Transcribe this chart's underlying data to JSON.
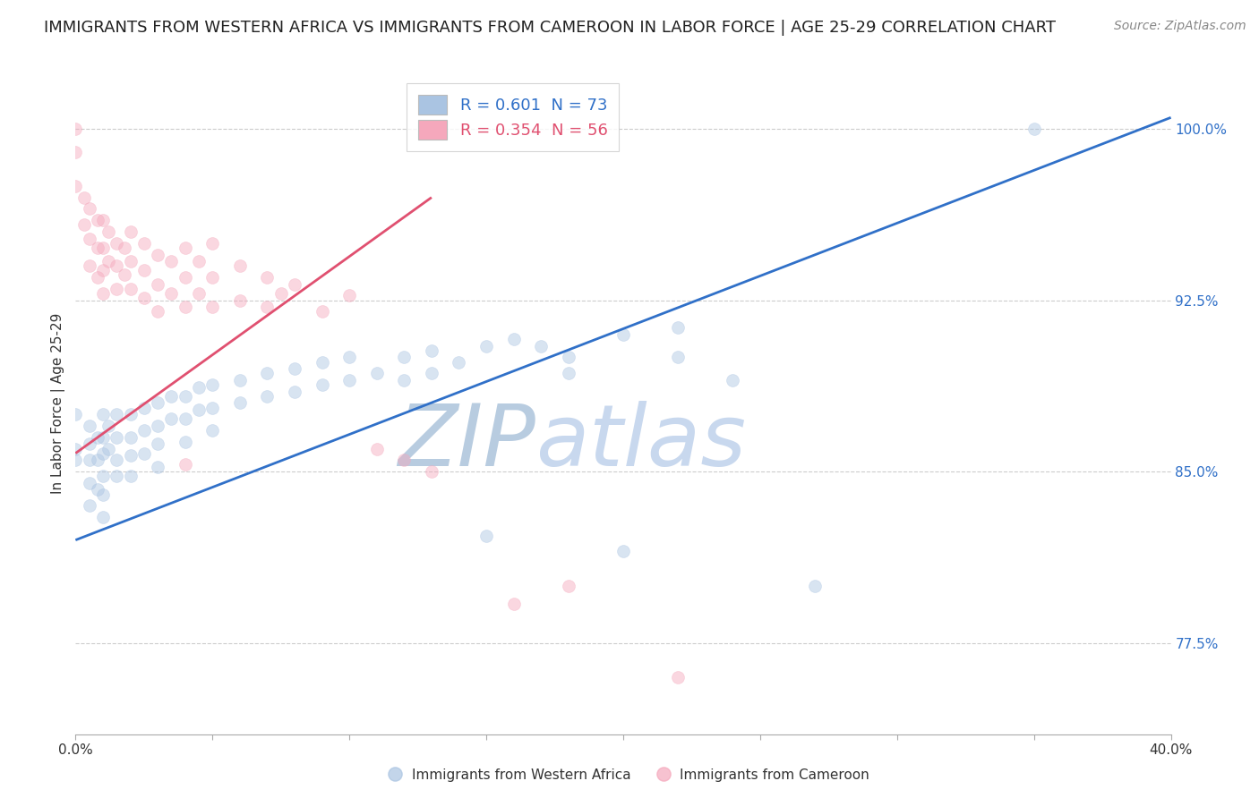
{
  "title": "IMMIGRANTS FROM WESTERN AFRICA VS IMMIGRANTS FROM CAMEROON IN LABOR FORCE | AGE 25-29 CORRELATION CHART",
  "source": "Source: ZipAtlas.com",
  "ylabel": "In Labor Force | Age 25-29",
  "xlim": [
    0.0,
    0.4
  ],
  "ylim": [
    0.735,
    1.025
  ],
  "xticks": [
    0.0,
    0.05,
    0.1,
    0.15,
    0.2,
    0.25,
    0.3,
    0.35,
    0.4
  ],
  "xticklabels": [
    "0.0%",
    "",
    "",
    "",
    "",
    "",
    "",
    "",
    "40.0%"
  ],
  "yticks": [
    0.775,
    0.85,
    0.925,
    1.0
  ],
  "yticklabels": [
    "77.5%",
    "85.0%",
    "92.5%",
    "100.0%"
  ],
  "blue_R": 0.601,
  "blue_N": 73,
  "pink_R": 0.354,
  "pink_N": 56,
  "blue_color": "#aac4e2",
  "pink_color": "#f5a8bc",
  "blue_line_color": "#3070c8",
  "pink_line_color": "#e05070",
  "blue_scatter": [
    [
      0.0,
      0.86
    ],
    [
      0.0,
      0.855
    ],
    [
      0.0,
      0.875
    ],
    [
      0.005,
      0.87
    ],
    [
      0.005,
      0.862
    ],
    [
      0.005,
      0.855
    ],
    [
      0.005,
      0.845
    ],
    [
      0.005,
      0.835
    ],
    [
      0.008,
      0.865
    ],
    [
      0.008,
      0.855
    ],
    [
      0.008,
      0.842
    ],
    [
      0.01,
      0.875
    ],
    [
      0.01,
      0.865
    ],
    [
      0.01,
      0.858
    ],
    [
      0.01,
      0.848
    ],
    [
      0.01,
      0.84
    ],
    [
      0.01,
      0.83
    ],
    [
      0.012,
      0.87
    ],
    [
      0.012,
      0.86
    ],
    [
      0.015,
      0.875
    ],
    [
      0.015,
      0.865
    ],
    [
      0.015,
      0.855
    ],
    [
      0.015,
      0.848
    ],
    [
      0.02,
      0.875
    ],
    [
      0.02,
      0.865
    ],
    [
      0.02,
      0.857
    ],
    [
      0.02,
      0.848
    ],
    [
      0.025,
      0.878
    ],
    [
      0.025,
      0.868
    ],
    [
      0.025,
      0.858
    ],
    [
      0.03,
      0.88
    ],
    [
      0.03,
      0.87
    ],
    [
      0.03,
      0.862
    ],
    [
      0.03,
      0.852
    ],
    [
      0.035,
      0.883
    ],
    [
      0.035,
      0.873
    ],
    [
      0.04,
      0.883
    ],
    [
      0.04,
      0.873
    ],
    [
      0.04,
      0.863
    ],
    [
      0.045,
      0.887
    ],
    [
      0.045,
      0.877
    ],
    [
      0.05,
      0.888
    ],
    [
      0.05,
      0.878
    ],
    [
      0.05,
      0.868
    ],
    [
      0.06,
      0.89
    ],
    [
      0.06,
      0.88
    ],
    [
      0.07,
      0.893
    ],
    [
      0.07,
      0.883
    ],
    [
      0.08,
      0.895
    ],
    [
      0.08,
      0.885
    ],
    [
      0.09,
      0.898
    ],
    [
      0.09,
      0.888
    ],
    [
      0.1,
      0.9
    ],
    [
      0.1,
      0.89
    ],
    [
      0.11,
      0.893
    ],
    [
      0.12,
      0.9
    ],
    [
      0.12,
      0.89
    ],
    [
      0.13,
      0.903
    ],
    [
      0.13,
      0.893
    ],
    [
      0.14,
      0.898
    ],
    [
      0.15,
      0.822
    ],
    [
      0.15,
      0.905
    ],
    [
      0.16,
      0.908
    ],
    [
      0.17,
      0.905
    ],
    [
      0.18,
      0.9
    ],
    [
      0.18,
      0.893
    ],
    [
      0.2,
      0.91
    ],
    [
      0.2,
      0.815
    ],
    [
      0.22,
      0.913
    ],
    [
      0.22,
      0.9
    ],
    [
      0.24,
      0.89
    ],
    [
      0.27,
      0.8
    ],
    [
      0.35,
      1.0
    ]
  ],
  "pink_scatter": [
    [
      0.0,
      1.0
    ],
    [
      0.0,
      0.99
    ],
    [
      0.0,
      0.975
    ],
    [
      0.003,
      0.97
    ],
    [
      0.003,
      0.958
    ],
    [
      0.005,
      0.965
    ],
    [
      0.005,
      0.952
    ],
    [
      0.005,
      0.94
    ],
    [
      0.008,
      0.96
    ],
    [
      0.008,
      0.948
    ],
    [
      0.008,
      0.935
    ],
    [
      0.01,
      0.96
    ],
    [
      0.01,
      0.948
    ],
    [
      0.01,
      0.938
    ],
    [
      0.01,
      0.928
    ],
    [
      0.012,
      0.955
    ],
    [
      0.012,
      0.942
    ],
    [
      0.015,
      0.95
    ],
    [
      0.015,
      0.94
    ],
    [
      0.015,
      0.93
    ],
    [
      0.018,
      0.948
    ],
    [
      0.018,
      0.936
    ],
    [
      0.02,
      0.955
    ],
    [
      0.02,
      0.942
    ],
    [
      0.02,
      0.93
    ],
    [
      0.025,
      0.95
    ],
    [
      0.025,
      0.938
    ],
    [
      0.025,
      0.926
    ],
    [
      0.03,
      0.945
    ],
    [
      0.03,
      0.932
    ],
    [
      0.03,
      0.92
    ],
    [
      0.035,
      0.942
    ],
    [
      0.035,
      0.928
    ],
    [
      0.04,
      0.948
    ],
    [
      0.04,
      0.935
    ],
    [
      0.04,
      0.922
    ],
    [
      0.045,
      0.942
    ],
    [
      0.045,
      0.928
    ],
    [
      0.05,
      0.95
    ],
    [
      0.05,
      0.935
    ],
    [
      0.05,
      0.922
    ],
    [
      0.06,
      0.94
    ],
    [
      0.06,
      0.925
    ],
    [
      0.07,
      0.935
    ],
    [
      0.07,
      0.922
    ],
    [
      0.075,
      0.928
    ],
    [
      0.08,
      0.932
    ],
    [
      0.09,
      0.92
    ],
    [
      0.1,
      0.927
    ],
    [
      0.11,
      0.86
    ],
    [
      0.12,
      0.855
    ],
    [
      0.13,
      0.85
    ],
    [
      0.16,
      0.792
    ],
    [
      0.18,
      0.8
    ],
    [
      0.22,
      0.76
    ],
    [
      0.04,
      0.853
    ]
  ],
  "blue_line_x": [
    0.0,
    0.4
  ],
  "blue_line_y": [
    0.82,
    1.005
  ],
  "pink_line_x": [
    0.0,
    0.13
  ],
  "pink_line_y": [
    0.858,
    0.97
  ],
  "watermark_zip": "ZIP",
  "watermark_atlas": "atlas",
  "legend_blue_label": "R = 0.601  N = 73",
  "legend_pink_label": "R = 0.354  N = 56",
  "legend_blue_text_color": "#3070c8",
  "legend_pink_text_color": "#e05070",
  "grid_color": "#cccccc",
  "background_color": "#ffffff",
  "title_fontsize": 13,
  "source_fontsize": 10,
  "ylabel_fontsize": 11,
  "tick_fontsize": 11,
  "watermark_color": "#c8d8ee",
  "watermark_fontsize": 70,
  "scatter_size": 100,
  "scatter_alpha": 0.45
}
